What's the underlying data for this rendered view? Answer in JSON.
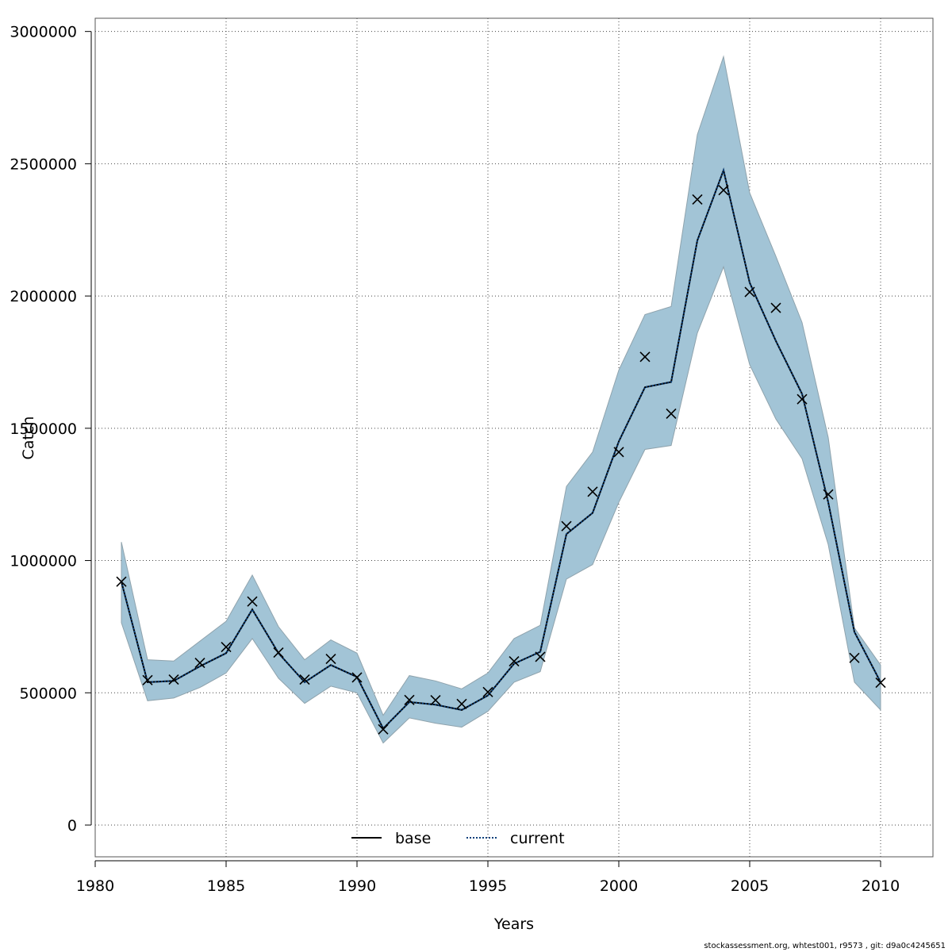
{
  "chart_data": {
    "type": "line",
    "xlabel": "Years",
    "ylabel": "Catch",
    "xlim": [
      1980,
      2012
    ],
    "ylim": [
      -120000,
      3050000
    ],
    "xticks": [
      1980,
      1985,
      1990,
      1995,
      2000,
      2005,
      2010
    ],
    "yticks": [
      0,
      500000,
      1000000,
      1500000,
      2000000,
      2500000,
      3000000
    ],
    "grid": true,
    "legend_placement": "bottom-center",
    "x": [
      1981,
      1982,
      1983,
      1984,
      1985,
      1986,
      1987,
      1988,
      1989,
      1990,
      1991,
      1992,
      1993,
      1994,
      1995,
      1996,
      1997,
      1998,
      1999,
      2000,
      2001,
      2002,
      2003,
      2004,
      2005,
      2006,
      2007,
      2008,
      2009,
      2010
    ],
    "series": [
      {
        "name": "base",
        "style": "solid",
        "color": "#000000",
        "values": [
          920000,
          540000,
          545000,
          600000,
          650000,
          815000,
          650000,
          540000,
          605000,
          560000,
          365000,
          465000,
          455000,
          435000,
          490000,
          610000,
          655000,
          1100000,
          1180000,
          1450000,
          1655000,
          1675000,
          2210000,
          2475000,
          2050000,
          1830000,
          1630000,
          1220000,
          730000,
          540000
        ]
      },
      {
        "name": "current",
        "style": "dotted",
        "color": "#0a3f7a",
        "values": [
          920000,
          540000,
          545000,
          600000,
          650000,
          815000,
          650000,
          540000,
          605000,
          560000,
          365000,
          465000,
          455000,
          435000,
          490000,
          610000,
          655000,
          1100000,
          1180000,
          1450000,
          1655000,
          1675000,
          2210000,
          2475000,
          2050000,
          1830000,
          1630000,
          1220000,
          730000,
          540000
        ]
      }
    ],
    "band": {
      "color": "#a2c4d6",
      "stroke": "#8fa3ad",
      "upper": [
        1070000,
        625000,
        620000,
        695000,
        770000,
        945000,
        750000,
        625000,
        700000,
        650000,
        415000,
        565000,
        545000,
        515000,
        575000,
        705000,
        755000,
        1280000,
        1410000,
        1720000,
        1930000,
        1960000,
        2610000,
        2905000,
        2390000,
        2150000,
        1900000,
        1465000,
        745000,
        605000
      ],
      "lower": [
        765000,
        470000,
        480000,
        520000,
        575000,
        705000,
        555000,
        460000,
        525000,
        500000,
        310000,
        405000,
        385000,
        370000,
        430000,
        540000,
        580000,
        930000,
        985000,
        1220000,
        1420000,
        1435000,
        1860000,
        2110000,
        1740000,
        1535000,
        1385000,
        1060000,
        540000,
        435000
      ]
    },
    "observations": {
      "marker": "x",
      "values": [
        920000,
        548000,
        550000,
        613000,
        673000,
        845000,
        652000,
        550000,
        628000,
        558000,
        362000,
        473000,
        472000,
        458000,
        503000,
        619000,
        636000,
        1130000,
        1260000,
        1410000,
        1770000,
        1555000,
        2365000,
        2400000,
        2015000,
        1955000,
        1610000,
        1250000,
        632000,
        538000
      ]
    },
    "footer_text": "stockassessment.org, whtest001, r9573 , git: d9a0c4245651"
  }
}
